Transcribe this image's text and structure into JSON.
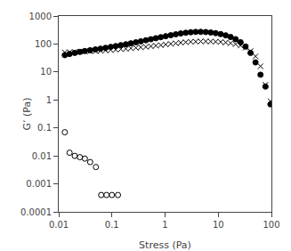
{
  "chart_data": {
    "type": "scatter",
    "xlabel": "Stress (Pa)",
    "ylabel": "G’ (Pa)",
    "log": true,
    "grid": false,
    "xlim": [
      0.01,
      100
    ],
    "ylim": [
      0.0001,
      1000
    ],
    "xticks": [
      0.01,
      0.1,
      1,
      10,
      100
    ],
    "yticks": [
      0.0001,
      0.001,
      0.01,
      0.1,
      1,
      10,
      100,
      1000
    ],
    "series": [
      {
        "color": "black",
        "marker": "open circle",
        "x": [
          0.013,
          0.016,
          0.02,
          0.025,
          0.031,
          0.039,
          0.05,
          0.063,
          0.079,
          0.1,
          0.13
        ],
        "values": [
          0.07,
          0.013,
          0.01,
          0.009,
          0.008,
          0.006,
          0.004,
          0.0004,
          0.0004,
          0.0004,
          0.0004
        ]
      },
      {
        "color": "black",
        "marker": "x",
        "x": [
          0.013,
          0.016,
          0.02,
          0.025,
          0.031,
          0.039,
          0.049,
          0.061,
          0.076,
          0.095,
          0.118,
          0.147,
          0.183,
          0.227,
          0.282,
          0.35,
          0.435,
          0.54,
          0.67,
          0.83,
          1.03,
          1.28,
          1.59,
          1.97,
          2.45,
          3.04,
          3.77,
          4.68,
          5.81,
          7.21,
          8.95,
          11.1,
          13.8,
          17.1,
          21.2,
          26.3,
          32.6,
          40.5,
          50.2,
          62.3,
          77.3,
          95.9
        ],
        "values": [
          50,
          51,
          52,
          53,
          54,
          55,
          56,
          57,
          59,
          61,
          63,
          65,
          67,
          70,
          73,
          76,
          79,
          83,
          87,
          91,
          96,
          101,
          106,
          112,
          116,
          120,
          122,
          124,
          124,
          123,
          121,
          118,
          113,
          107,
          99,
          88,
          74,
          56,
          36,
          16,
          3.5,
          0.9
        ]
      },
      {
        "color": "black",
        "marker": "circle",
        "x": [
          0.013,
          0.016,
          0.02,
          0.025,
          0.031,
          0.039,
          0.049,
          0.061,
          0.076,
          0.095,
          0.118,
          0.147,
          0.183,
          0.227,
          0.282,
          0.35,
          0.435,
          0.54,
          0.67,
          0.83,
          1.03,
          1.28,
          1.59,
          1.97,
          2.45,
          3.04,
          3.77,
          4.68,
          5.81,
          7.21,
          8.95,
          11.1,
          13.8,
          17.1,
          21.2,
          26.3,
          32.6,
          40.5,
          50.2,
          62.3,
          77.3,
          95.9
        ],
        "values": [
          40,
          44,
          48,
          52,
          56,
          60,
          64,
          68,
          73,
          79,
          84,
          91,
          98,
          106,
          115,
          125,
          136,
          148,
          161,
          175,
          190,
          206,
          222,
          238,
          252,
          263,
          270,
          272,
          268,
          258,
          244,
          226,
          204,
          178,
          149,
          116,
          81,
          48,
          22,
          8,
          3,
          0.7
        ]
      }
    ]
  }
}
